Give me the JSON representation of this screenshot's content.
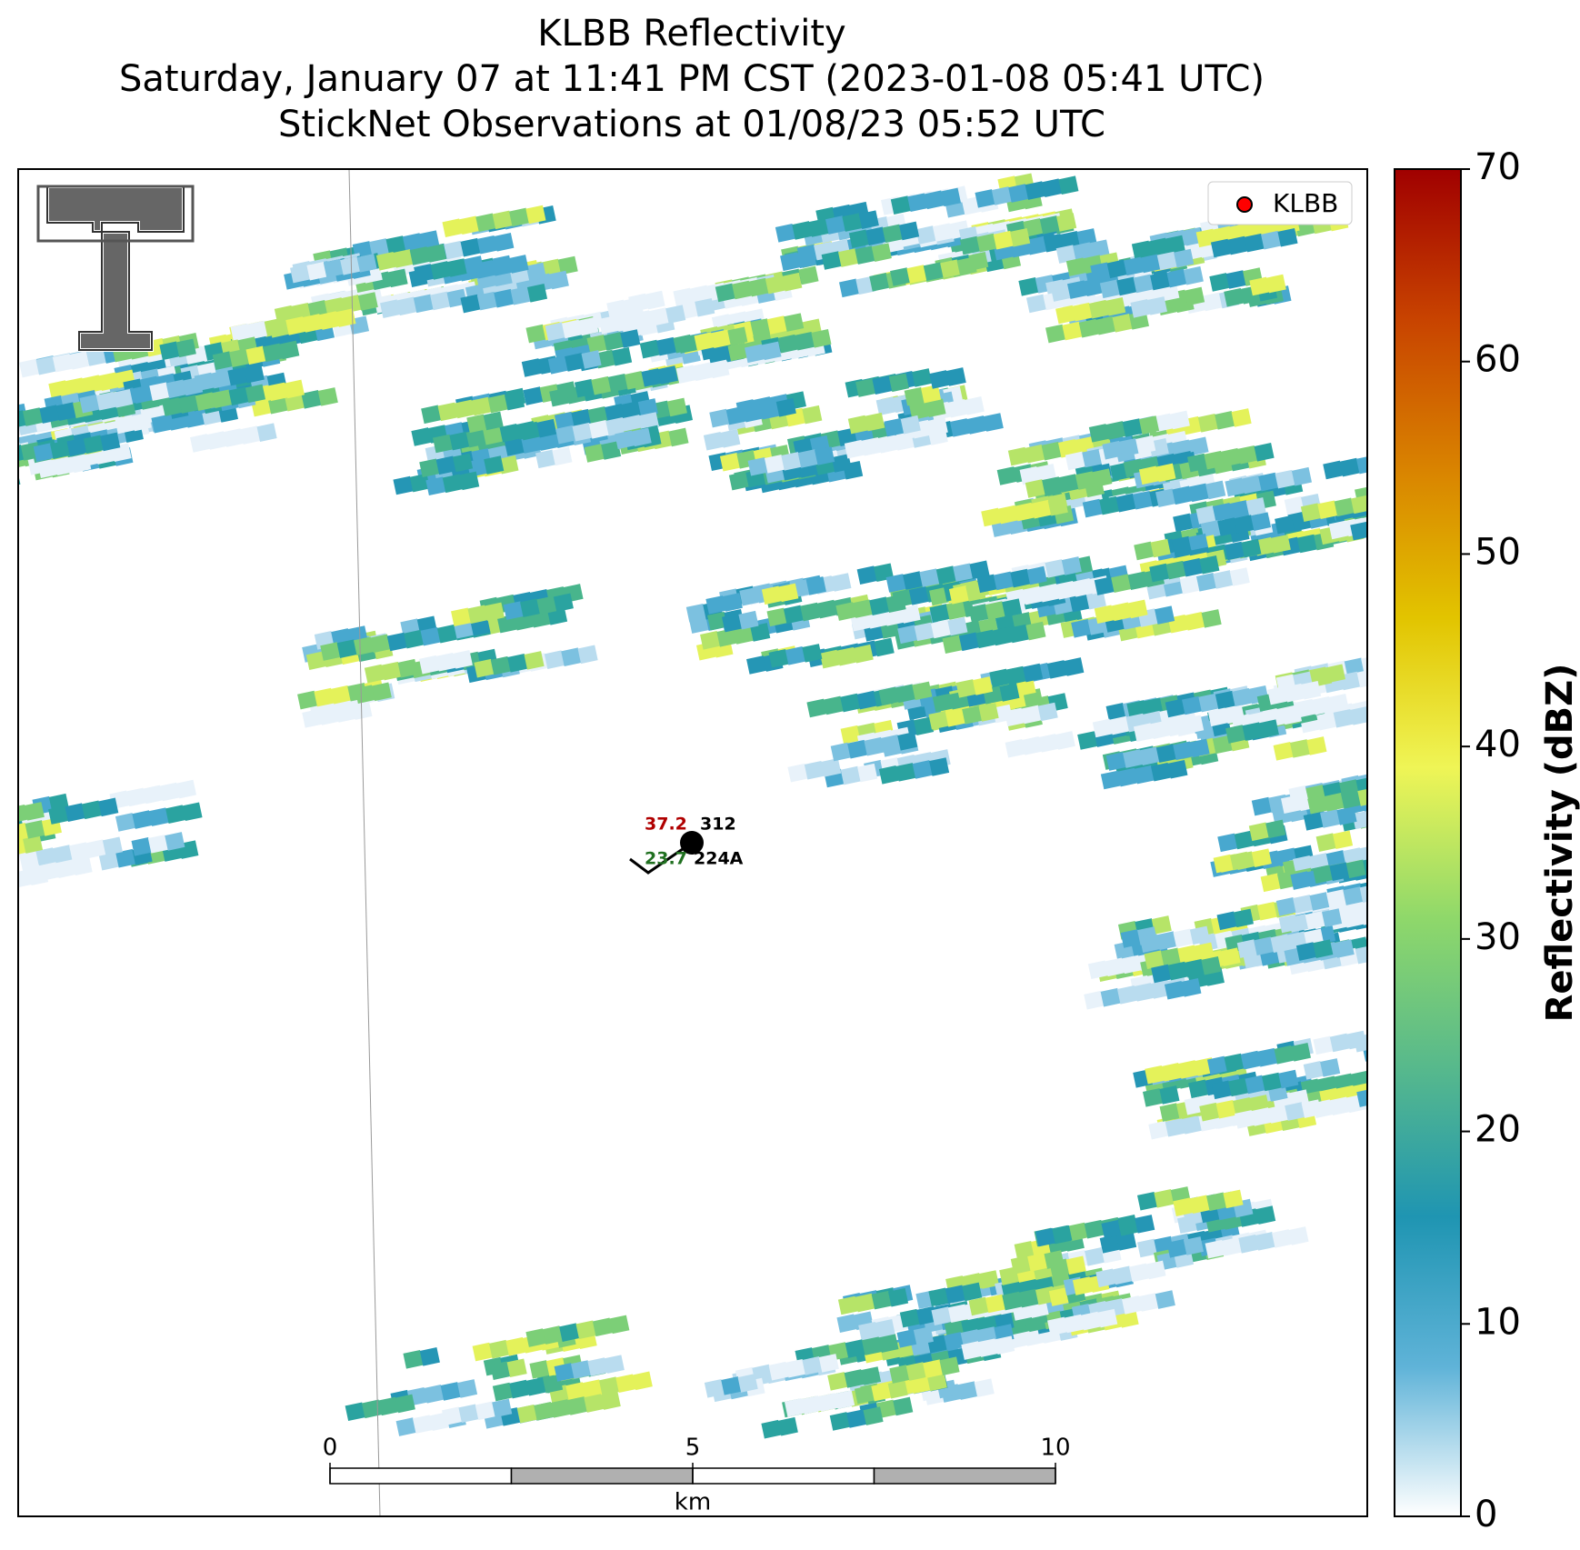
{
  "title_lines": [
    "KLBB Reflectivity",
    "Saturday, January 07 at 11:41 PM CST (2023-01-08 05:41 UTC)",
    "StickNet Observations at 01/08/23 05:52 UTC"
  ],
  "colorbar": {
    "label": "Reflectivity (dBZ)",
    "lim": [
      0,
      70
    ],
    "ticks": [
      0,
      10,
      20,
      30,
      40,
      50,
      60,
      70
    ],
    "colors": [
      "#ffffff",
      "#5fb3d8",
      "#1f95b2",
      "#57b98c",
      "#8fd86a",
      "#eff556",
      "#e2c400",
      "#d98300",
      "#c84300",
      "#a00000"
    ]
  },
  "legend": {
    "label": "KLBB",
    "color": "#ff0000"
  },
  "station": {
    "temperature": 37.2,
    "dewpoint": 23.7,
    "id": "312",
    "name": "224A"
  },
  "scale_bar": {
    "unit": "km",
    "xlim": [
      0,
      10
    ],
    "xticks": [
      0,
      5,
      10
    ]
  }
}
